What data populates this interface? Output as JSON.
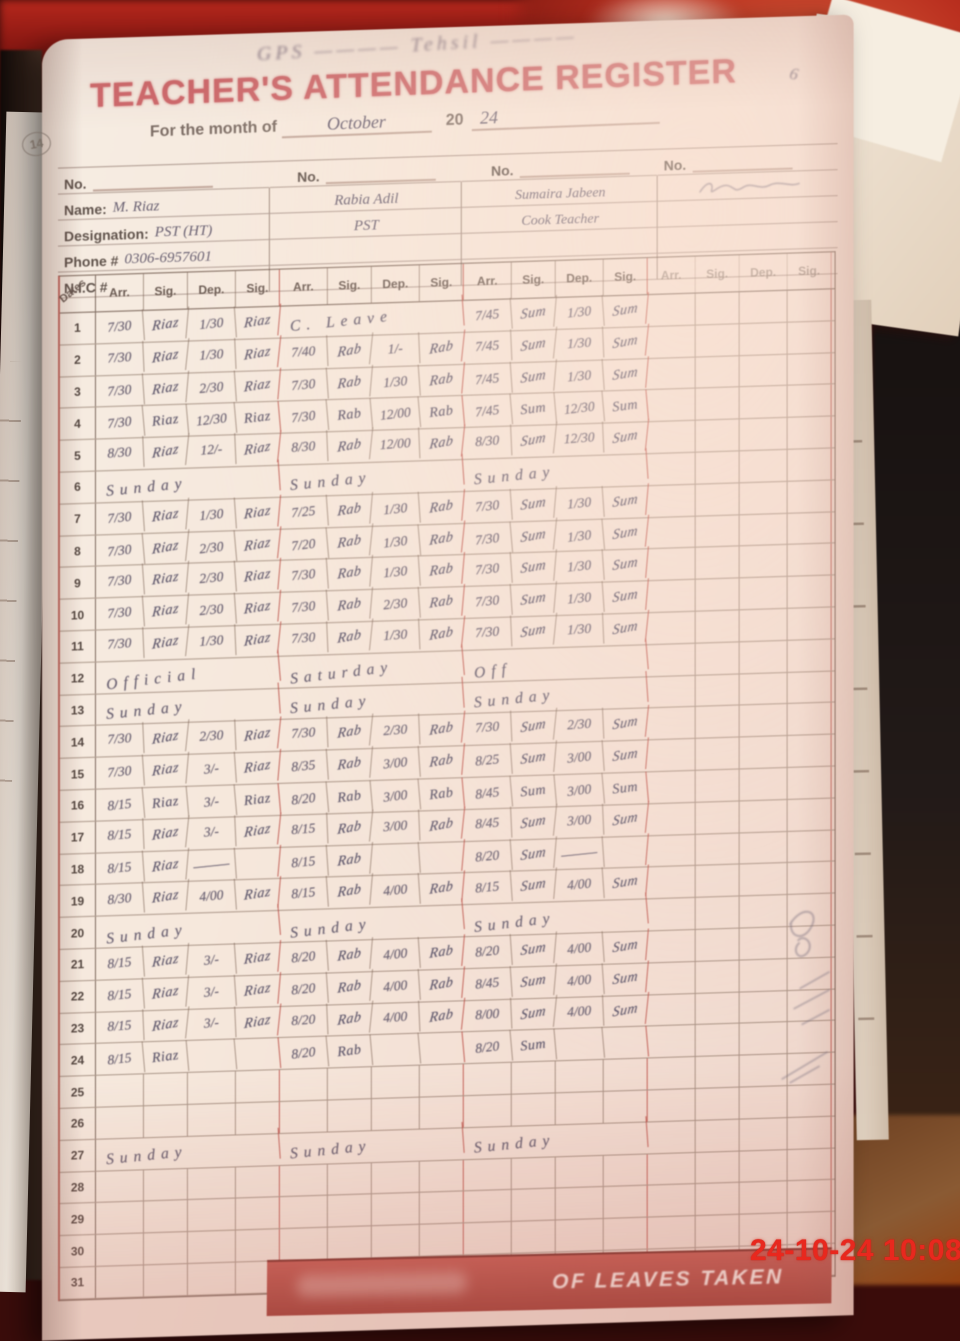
{
  "photo": {
    "timestamp": "24-10-24  10:08",
    "page_number": "14",
    "corner_mark": "6",
    "margin_notes": "illegible pencil scribbles in right margin near rows 21-27"
  },
  "colors": {
    "title_pink": "#cf6a6d",
    "red_rule": "#ba4c44",
    "pencil_gray": "#6b6273",
    "grid_brown": "#7a6052",
    "stamp_red": "#e8281e",
    "band_red": "#b8453e"
  },
  "register": {
    "school_line": "GPS ————  Tehsil ————",
    "title": "TEACHER'S ATTENDANCE REGISTER",
    "month_label": "For the month of",
    "month_value": "October",
    "year_prefix": "20",
    "year_value": "24",
    "no_label": "No.",
    "fields": {
      "name": "Name:",
      "designation": "Designation:",
      "phone": "Phone #",
      "nic": "N.I.C #"
    },
    "teachers": [
      {
        "name": "M. Riaz",
        "designation": "PST (HT)",
        "phone": "0306-6957601",
        "nic": ""
      },
      {
        "name": "Rabia Adil",
        "designation": "PST",
        "phone": "",
        "nic": ""
      },
      {
        "name": "Sumaira Jabeen",
        "designation": "Cook Teacher",
        "phone": "",
        "nic": ""
      },
      {
        "name": "",
        "designation": "",
        "phone": "",
        "nic": "",
        "signature_scribble": true
      }
    ],
    "dates_label": "Dates",
    "col_headers": [
      "Arr.",
      "Sig.",
      "Dep.",
      "Sig."
    ],
    "footer_band": "OF LEAVES TAKEN",
    "rows": [
      {
        "n": "1",
        "g": [
          [
            "7/30",
            "Riaz",
            "1/30",
            "Riaz"
          ],
          "C. Leave",
          [
            "7/45",
            "Sum",
            "1/30",
            "Sum"
          ],
          ""
        ]
      },
      {
        "n": "2",
        "g": [
          [
            "7/30",
            "Riaz",
            "1/30",
            "Riaz"
          ],
          [
            "7/40",
            "Rab",
            "1/-",
            "Rab"
          ],
          [
            "7/45",
            "Sum",
            "1/30",
            "Sum"
          ],
          ""
        ]
      },
      {
        "n": "3",
        "g": [
          [
            "7/30",
            "Riaz",
            "2/30",
            "Riaz"
          ],
          [
            "7/30",
            "Rab",
            "1/30",
            "Rab"
          ],
          [
            "7/45",
            "Sum",
            "1/30",
            "Sum"
          ],
          ""
        ]
      },
      {
        "n": "4",
        "g": [
          [
            "7/30",
            "Riaz",
            "12/30",
            "Riaz"
          ],
          [
            "7/30",
            "Rab",
            "12/00",
            "Rab"
          ],
          [
            "7/45",
            "Sum",
            "12/30",
            "Sum"
          ],
          ""
        ]
      },
      {
        "n": "5",
        "g": [
          [
            "8/30",
            "Riaz",
            "12/-",
            "Riaz"
          ],
          [
            "8/30",
            "Rab",
            "12/00",
            "Rab"
          ],
          [
            "8/30",
            "Sum",
            "12/30",
            "Sum"
          ],
          ""
        ]
      },
      {
        "n": "6",
        "g": [
          "Sunday",
          "Sunday",
          "Sunday",
          ""
        ]
      },
      {
        "n": "7",
        "g": [
          [
            "7/30",
            "Riaz",
            "1/30",
            "Riaz"
          ],
          [
            "7/25",
            "Rab",
            "1/30",
            "Rab"
          ],
          [
            "7/30",
            "Sum",
            "1/30",
            "Sum"
          ],
          ""
        ]
      },
      {
        "n": "8",
        "g": [
          [
            "7/30",
            "Riaz",
            "2/30",
            "Riaz"
          ],
          [
            "7/20",
            "Rab",
            "1/30",
            "Rab"
          ],
          [
            "7/30",
            "Sum",
            "1/30",
            "Sum"
          ],
          ""
        ]
      },
      {
        "n": "9",
        "g": [
          [
            "7/30",
            "Riaz",
            "2/30",
            "Riaz"
          ],
          [
            "7/30",
            "Rab",
            "1/30",
            "Rab"
          ],
          [
            "7/30",
            "Sum",
            "1/30",
            "Sum"
          ],
          ""
        ]
      },
      {
        "n": "10",
        "g": [
          [
            "7/30",
            "Riaz",
            "2/30",
            "Riaz"
          ],
          [
            "7/30",
            "Rab",
            "2/30",
            "Rab"
          ],
          [
            "7/30",
            "Sum",
            "1/30",
            "Sum"
          ],
          ""
        ]
      },
      {
        "n": "11",
        "g": [
          [
            "7/30",
            "Riaz",
            "1/30",
            "Riaz"
          ],
          [
            "7/30",
            "Rab",
            "1/30",
            "Rab"
          ],
          [
            "7/30",
            "Sum",
            "1/30",
            "Sum"
          ],
          ""
        ]
      },
      {
        "n": "12",
        "g": [
          "Official",
          "Saturday",
          "Off",
          ""
        ]
      },
      {
        "n": "13",
        "g": [
          "Sunday",
          "Sunday",
          "Sunday",
          ""
        ]
      },
      {
        "n": "14",
        "g": [
          [
            "7/30",
            "Riaz",
            "2/30",
            "Riaz"
          ],
          [
            "7/30",
            "Rab",
            "2/30",
            "Rab"
          ],
          [
            "7/30",
            "Sum",
            "2/30",
            "Sum"
          ],
          ""
        ]
      },
      {
        "n": "15",
        "g": [
          [
            "7/30",
            "Riaz",
            "3/-",
            "Riaz"
          ],
          [
            "8/35",
            "Rab",
            "3/00",
            "Rab"
          ],
          [
            "8/25",
            "Sum",
            "3/00",
            "Sum"
          ],
          ""
        ]
      },
      {
        "n": "16",
        "g": [
          [
            "8/15",
            "Riaz",
            "3/-",
            "Riaz"
          ],
          [
            "8/20",
            "Rab",
            "3/00",
            "Rab"
          ],
          [
            "8/45",
            "Sum",
            "3/00",
            "Sum"
          ],
          ""
        ]
      },
      {
        "n": "17",
        "g": [
          [
            "8/15",
            "Riaz",
            "3/-",
            "Riaz"
          ],
          [
            "8/15",
            "Rab",
            "3/00",
            "Rab"
          ],
          [
            "8/45",
            "Sum",
            "3/00",
            "Sum"
          ],
          ""
        ]
      },
      {
        "n": "18",
        "g": [
          [
            "8/15",
            "Riaz",
            "———",
            ""
          ],
          [
            "8/15",
            "Rab",
            "",
            ""
          ],
          [
            "8/20",
            "Sum",
            "———",
            ""
          ],
          ""
        ]
      },
      {
        "n": "19",
        "g": [
          [
            "8/30",
            "Riaz",
            "4/00",
            "Riaz"
          ],
          [
            "8/15",
            "Rab",
            "4/00",
            "Rab"
          ],
          [
            "8/15",
            "Sum",
            "4/00",
            "Sum"
          ],
          ""
        ]
      },
      {
        "n": "20",
        "g": [
          "Sunday",
          "Sunday",
          "Sunday",
          ""
        ]
      },
      {
        "n": "21",
        "g": [
          [
            "8/15",
            "Riaz",
            "3/-",
            "Riaz"
          ],
          [
            "8/20",
            "Rab",
            "4/00",
            "Rab"
          ],
          [
            "8/20",
            "Sum",
            "4/00",
            "Sum"
          ],
          ""
        ]
      },
      {
        "n": "22",
        "g": [
          [
            "8/15",
            "Riaz",
            "3/-",
            "Riaz"
          ],
          [
            "8/20",
            "Rab",
            "4/00",
            "Rab"
          ],
          [
            "8/45",
            "Sum",
            "4/00",
            "Sum"
          ],
          ""
        ]
      },
      {
        "n": "23",
        "g": [
          [
            "8/15",
            "Riaz",
            "3/-",
            "Riaz"
          ],
          [
            "8/20",
            "Rab",
            "4/00",
            "Rab"
          ],
          [
            "8/00",
            "Sum",
            "4/00",
            "Sum"
          ],
          ""
        ]
      },
      {
        "n": "24",
        "g": [
          [
            "8/15",
            "Riaz",
            "",
            ""
          ],
          [
            "8/20",
            "Rab",
            "",
            ""
          ],
          [
            "8/20",
            "Sum",
            "",
            ""
          ],
          ""
        ]
      },
      {
        "n": "25",
        "g": [
          "",
          "",
          "",
          ""
        ]
      },
      {
        "n": "26",
        "g": [
          "",
          "",
          "",
          ""
        ]
      },
      {
        "n": "27",
        "g": [
          "Sunday",
          "Sunday",
          "Sunday",
          ""
        ]
      },
      {
        "n": "28",
        "g": [
          "",
          "",
          "",
          ""
        ]
      },
      {
        "n": "29",
        "g": [
          "",
          "",
          "",
          ""
        ]
      },
      {
        "n": "30",
        "g": [
          "",
          "",
          "",
          ""
        ]
      },
      {
        "n": "31",
        "g": [
          "",
          "",
          "",
          ""
        ]
      }
    ]
  }
}
